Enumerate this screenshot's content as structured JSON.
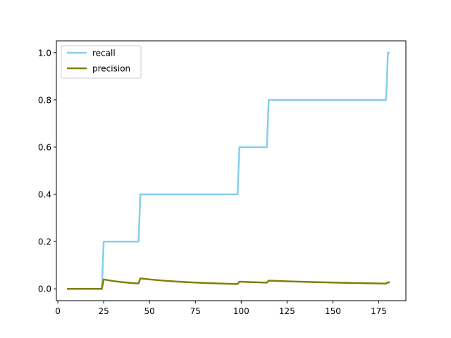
{
  "chart_data": {
    "type": "line",
    "title": "",
    "xlabel": "",
    "ylabel": "",
    "xlim": [
      -0.8,
      189.8
    ],
    "ylim": [
      -0.05,
      1.05
    ],
    "xticks": [
      0,
      25,
      50,
      75,
      100,
      125,
      150,
      175
    ],
    "yticks": [
      0.0,
      0.2,
      0.4,
      0.6,
      0.8,
      1.0
    ],
    "xtick_labels": [
      "0",
      "25",
      "50",
      "75",
      "100",
      "125",
      "150",
      "175"
    ],
    "ytick_labels": [
      "0.0",
      "0.2",
      "0.4",
      "0.6",
      "0.8",
      "1.0"
    ],
    "grid": false,
    "legend": "upper-left",
    "series": [
      {
        "name": "recall",
        "color": "#87ceeb",
        "points": [
          [
            5,
            0
          ],
          [
            24,
            0
          ],
          [
            25,
            0.2
          ],
          [
            44,
            0.2
          ],
          [
            45,
            0.4
          ],
          [
            98,
            0.4
          ],
          [
            99,
            0.6
          ],
          [
            114,
            0.6
          ],
          [
            115,
            0.8
          ],
          [
            179,
            0.8
          ],
          [
            180,
            1.0
          ],
          [
            181,
            1.0
          ]
        ]
      },
      {
        "name": "precision",
        "color": "#808000",
        "points": [
          [
            5,
            0
          ],
          [
            24,
            0
          ],
          [
            25,
            0.04
          ],
          [
            30,
            0.0333
          ],
          [
            35,
            0.0286
          ],
          [
            40,
            0.025
          ],
          [
            44,
            0.0227
          ],
          [
            45,
            0.0444
          ],
          [
            50,
            0.04
          ],
          [
            60,
            0.0333
          ],
          [
            70,
            0.0286
          ],
          [
            80,
            0.025
          ],
          [
            90,
            0.0222
          ],
          [
            98,
            0.0204
          ],
          [
            99,
            0.0303
          ],
          [
            105,
            0.0286
          ],
          [
            114,
            0.0263
          ],
          [
            115,
            0.0348
          ],
          [
            125,
            0.032
          ],
          [
            140,
            0.0286
          ],
          [
            160,
            0.025
          ],
          [
            179,
            0.0223
          ],
          [
            180,
            0.0278
          ],
          [
            181,
            0.0276
          ]
        ]
      }
    ]
  }
}
